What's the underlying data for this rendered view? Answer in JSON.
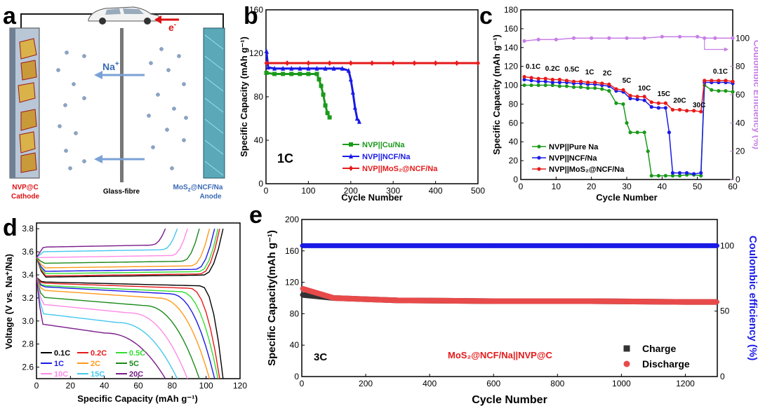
{
  "panel_labels": [
    "a",
    "b",
    "c",
    "d",
    "e"
  ],
  "schematic": {
    "cathode_label_1": "NVP@C",
    "cathode_label_2": "Cathode",
    "separator_label": "Glass-fibre",
    "anode_label_1": "MoS",
    "anode_sub": "2",
    "anode_label_2": "@NCF/Na",
    "anode_label_3": "Anode",
    "ion_label": "Na",
    "ion_sup": "+",
    "electron_label": "e",
    "electron_sup": "-"
  },
  "chart_data": [
    {
      "id": "b",
      "type": "scatter",
      "title": "",
      "annotation": "1C",
      "xlabel": "Cycle Number",
      "ylabel": "Specific Capacity (mAh g⁻¹)",
      "xlim": [
        0,
        500
      ],
      "ylim": [
        0,
        160
      ],
      "xticks": [
        0,
        100,
        200,
        300,
        400,
        500
      ],
      "yticks": [
        0,
        40,
        80,
        120,
        160
      ],
      "legend": [
        "NVP||Cu/Na",
        "NVP||NCF/Na",
        "NVP||MoS₂@NCF/Na"
      ],
      "series": [
        {
          "name": "NVP||Cu/Na",
          "color": "#1a9a1a",
          "marker": "square",
          "x": [
            1,
            20,
            40,
            60,
            80,
            100,
            120,
            125,
            130,
            135,
            140,
            145,
            150
          ],
          "y": [
            102,
            101,
            101,
            101,
            101,
            101,
            101,
            96,
            90,
            82,
            72,
            65,
            61
          ]
        },
        {
          "name": "NVP||NCF/Na",
          "color": "#1a1ae6",
          "marker": "triangle",
          "x": [
            1,
            5,
            20,
            40,
            60,
            80,
            100,
            120,
            140,
            160,
            180,
            195,
            200,
            205,
            210,
            215,
            220
          ],
          "y": [
            122,
            107,
            106,
            106,
            106,
            106,
            106,
            106,
            106,
            106,
            106,
            104,
            96,
            84,
            70,
            60,
            57
          ]
        },
        {
          "name": "NVP||MoS₂@NCF/Na",
          "color": "#e61a1a",
          "marker": "diamond",
          "x": [
            1,
            50,
            100,
            150,
            200,
            250,
            300,
            350,
            400,
            450,
            500
          ],
          "y": [
            111,
            111,
            111,
            111,
            111,
            111,
            111,
            111,
            111,
            111,
            111
          ]
        }
      ]
    },
    {
      "id": "c",
      "type": "scatter",
      "xlabel": "Cycle Number",
      "ylabel": "Specific Capacity (mAh g⁻¹)",
      "ylabel_right": "Coulombic Efficiency (%)",
      "xlim": [
        0,
        60
      ],
      "ylim": [
        0,
        180
      ],
      "ylim_right": [
        0,
        120
      ],
      "xticks": [
        0,
        10,
        20,
        30,
        40,
        50,
        60
      ],
      "yticks": [
        0,
        20,
        40,
        60,
        80,
        100,
        120,
        140,
        160,
        180
      ],
      "yticks_right": [
        0,
        20,
        40,
        60,
        80,
        100
      ],
      "rate_labels": [
        "0.1C",
        "0.2C",
        "0.5C",
        "1C",
        "2C",
        "5C",
        "10C",
        "15C",
        "20C",
        "30C",
        "0.1C"
      ],
      "legend": [
        "NVP||Pure Na",
        "NVP||NCF/Na",
        "NVP||MoS₂@NCF/Na"
      ],
      "series": [
        {
          "name": "NVP||Pure Na",
          "color": "#1a9a1a",
          "x": [
            1,
            3,
            5,
            7,
            9,
            11,
            13,
            15,
            17,
            19,
            21,
            23,
            25,
            27,
            29,
            30,
            31,
            33,
            35,
            36,
            37,
            39,
            41,
            43,
            45,
            47,
            49,
            51,
            52,
            54,
            56,
            58,
            60
          ],
          "y": [
            100,
            100,
            100,
            100,
            100,
            99,
            99,
            98,
            98,
            97,
            97,
            96,
            94,
            81,
            80,
            60,
            50,
            50,
            50,
            30,
            4,
            4,
            4,
            4,
            4,
            5,
            5,
            4,
            100,
            95,
            94,
            94,
            93
          ]
        },
        {
          "name": "NVP||NCF/Na",
          "color": "#1a1ae6",
          "x": [
            1,
            3,
            5,
            7,
            9,
            11,
            13,
            15,
            17,
            19,
            21,
            23,
            25,
            27,
            29,
            31,
            33,
            35,
            37,
            39,
            41,
            42,
            43,
            45,
            47,
            49,
            51,
            52,
            54,
            56,
            58,
            60
          ],
          "y": [
            106,
            105,
            104,
            104,
            103,
            103,
            103,
            102,
            102,
            101,
            101,
            100,
            99,
            94,
            93,
            86,
            85,
            84,
            77,
            76,
            76,
            50,
            7,
            7,
            7,
            6,
            7,
            103,
            103,
            103,
            103,
            102
          ]
        },
        {
          "name": "NVP||MoS₂@NCF/Na",
          "color": "#e61a1a",
          "x": [
            1,
            3,
            5,
            7,
            9,
            11,
            13,
            15,
            17,
            19,
            21,
            23,
            25,
            27,
            29,
            31,
            33,
            35,
            37,
            39,
            41,
            43,
            45,
            47,
            49,
            51,
            52,
            54,
            56,
            58,
            60
          ],
          "y": [
            109,
            108,
            107,
            107,
            106,
            106,
            105,
            104,
            104,
            103,
            103,
            102,
            101,
            96,
            95,
            89,
            88,
            88,
            82,
            81,
            81,
            74,
            74,
            73,
            73,
            72,
            105,
            105,
            105,
            105,
            104
          ]
        },
        {
          "name": "Coulombic Efficiency",
          "color": "#c77ee6",
          "axis": "right",
          "x": [
            1,
            5,
            10,
            15,
            20,
            25,
            30,
            35,
            40,
            45,
            50,
            52,
            55,
            60
          ],
          "y": [
            98,
            99,
            99,
            100,
            100,
            100,
            100,
            100,
            101,
            101,
            101,
            100,
            100,
            100
          ]
        }
      ]
    },
    {
      "id": "d",
      "type": "line",
      "xlabel": "Specific Capacity (mAh g⁻¹)",
      "ylabel": "Voltage (V vs. Na⁺/Na)",
      "xlim": [
        0,
        120
      ],
      "ylim": [
        2.5,
        3.85
      ],
      "xticks": [
        0,
        20,
        40,
        60,
        80,
        100,
        120
      ],
      "yticks": [
        2.6,
        2.8,
        3.0,
        3.2,
        3.4,
        3.6,
        3.8
      ],
      "legend": [
        "0.1C",
        "0.2C",
        "0.5C",
        "1C",
        "2C",
        "5C",
        "10C",
        "15C",
        "20C"
      ],
      "series": [
        {
          "name": "0.1C",
          "color": "#000000",
          "charge_v": 3.38,
          "discharge_v": 3.34,
          "cap": 110
        },
        {
          "name": "0.2C",
          "color": "#e61a1a",
          "charge_v": 3.39,
          "discharge_v": 3.33,
          "cap": 108
        },
        {
          "name": "0.5C",
          "color": "#33dd33",
          "charge_v": 3.41,
          "discharge_v": 3.31,
          "cap": 107
        },
        {
          "name": "1C",
          "color": "#1a1ae6",
          "charge_v": 3.43,
          "discharge_v": 3.3,
          "cap": 105
        },
        {
          "name": "2C",
          "color": "#ff9a1a",
          "charge_v": 3.46,
          "discharge_v": 3.27,
          "cap": 102
        },
        {
          "name": "5C",
          "color": "#1a8a1a",
          "charge_v": 3.5,
          "discharge_v": 3.21,
          "cap": 96
        },
        {
          "name": "10C",
          "color": "#ff8ae6",
          "charge_v": 3.55,
          "discharge_v": 3.15,
          "cap": 89
        },
        {
          "name": "15C",
          "color": "#45c8ee",
          "charge_v": 3.6,
          "discharge_v": 3.07,
          "cap": 83
        },
        {
          "name": "20C",
          "color": "#7a1a8a",
          "charge_v": 3.64,
          "discharge_v": 2.98,
          "cap": 76
        }
      ]
    },
    {
      "id": "e",
      "type": "scatter",
      "annotation": "3C",
      "series_label": "MoS₂@NCF/Na||NVP@C",
      "xlabel": "Cycle Number",
      "ylabel": "Specific Capacity(mAh g⁻¹)",
      "ylabel_right": "Coulombic efficiency (%)",
      "xlim": [
        0,
        1300
      ],
      "ylim": [
        0,
        200
      ],
      "ylim_right": [
        0,
        120
      ],
      "xticks": [
        0,
        200,
        400,
        600,
        800,
        1000,
        1200
      ],
      "yticks": [
        0,
        40,
        80,
        120,
        160,
        200
      ],
      "yticks_right": [
        0,
        50,
        100
      ],
      "legend": [
        "Charge",
        "Discharge"
      ],
      "series": [
        {
          "name": "Charge",
          "color": "#333333",
          "x": [
            1,
            100,
            300,
            600,
            900,
            1200,
            1300
          ],
          "y": [
            104,
            100,
            97,
            96,
            96,
            95,
            95
          ]
        },
        {
          "name": "Discharge",
          "color": "#e84a4a",
          "x": [
            1,
            100,
            300,
            600,
            900,
            1200,
            1300
          ],
          "y": [
            112,
            100,
            97,
            96,
            96,
            95,
            95
          ]
        },
        {
          "name": "Coulombic efficiency",
          "color": "#1a1ae6",
          "axis": "right",
          "x": [
            1,
            300,
            600,
            900,
            1200,
            1300
          ],
          "y": [
            100,
            100,
            100,
            100,
            100,
            100
          ]
        }
      ]
    }
  ]
}
